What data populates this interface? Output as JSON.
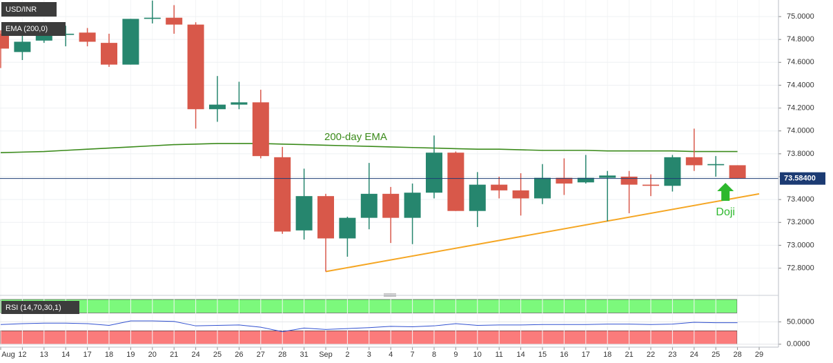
{
  "chart_data": [
    {
      "type": "candlestick",
      "title": "USD/INR",
      "indicator": "EMA (200,0)",
      "categories": [
        "Aug",
        "12",
        "13",
        "14",
        "17",
        "18",
        "19",
        "20",
        "21",
        "24",
        "25",
        "26",
        "27",
        "28",
        "31",
        "Sep",
        "2",
        "3",
        "4",
        "7",
        "8",
        "9",
        "10",
        "11",
        "14",
        "15",
        "16",
        "17",
        "18",
        "21",
        "22",
        "23",
        "24",
        "25",
        "28",
        "29"
      ],
      "open": [
        74.85,
        74.69,
        74.79,
        74.84,
        74.86,
        74.77,
        74.58,
        74.98,
        74.99,
        74.93,
        74.19,
        74.23,
        74.25,
        73.77,
        73.13,
        73.43,
        73.06,
        73.24,
        73.45,
        73.24,
        73.46,
        73.81,
        73.3,
        73.53,
        73.48,
        73.41,
        73.59,
        73.55,
        73.59,
        73.6,
        73.53,
        73.52,
        73.77,
        73.7,
        73.7,
        null
      ],
      "high": [
        74.88,
        74.86,
        74.88,
        74.92,
        74.9,
        74.85,
        74.98,
        75.14,
        75.1,
        74.95,
        74.48,
        74.43,
        74.36,
        73.86,
        73.67,
        73.45,
        73.25,
        73.72,
        73.51,
        73.54,
        73.96,
        73.82,
        73.64,
        73.6,
        73.63,
        73.71,
        73.76,
        73.79,
        73.65,
        73.65,
        73.62,
        73.79,
        74.02,
        73.78,
        73.7,
        null
      ],
      "low": [
        74.55,
        74.62,
        74.77,
        74.74,
        74.74,
        74.56,
        74.58,
        74.94,
        74.85,
        74.02,
        74.08,
        74.19,
        73.76,
        73.1,
        73.05,
        72.77,
        72.9,
        73.14,
        73.02,
        73.01,
        73.41,
        73.3,
        73.16,
        73.41,
        73.26,
        73.36,
        73.44,
        73.54,
        73.21,
        73.28,
        73.43,
        73.47,
        73.65,
        73.6,
        73.584,
        null
      ],
      "close": [
        74.72,
        74.78,
        74.84,
        74.85,
        74.78,
        74.58,
        74.98,
        74.99,
        74.93,
        74.19,
        74.23,
        74.25,
        73.78,
        73.12,
        73.43,
        73.06,
        73.24,
        73.45,
        73.24,
        73.46,
        73.81,
        73.3,
        73.53,
        73.48,
        73.41,
        73.59,
        73.54,
        73.59,
        73.61,
        73.53,
        73.52,
        73.77,
        73.7,
        73.71,
        73.584,
        null
      ],
      "up_color": "#26866e",
      "down_color": "#d8584a",
      "ylim": [
        72.58,
        75.145
      ],
      "yticks": [
        {
          "value": 72.8,
          "label": "72.8000"
        },
        {
          "value": 73.0,
          "label": "73.0000"
        },
        {
          "value": 73.2,
          "label": "73.2000"
        },
        {
          "value": 73.4,
          "label": "73.4000"
        },
        {
          "value": 73.6,
          "label": "73.6000"
        },
        {
          "value": 73.8,
          "label": "73.8000"
        },
        {
          "value": 74.0,
          "label": "74.0000"
        },
        {
          "value": 74.2,
          "label": "74.2000"
        },
        {
          "value": 74.4,
          "label": "74.4000"
        },
        {
          "value": 74.6,
          "label": "74.6000"
        },
        {
          "value": 74.8,
          "label": "74.8000"
        },
        {
          "value": 75.0,
          "label": "75.0000"
        }
      ],
      "grid": true,
      "ema": {
        "name": "200-day EMA",
        "color": "#3a8a1a",
        "values": [
          73.81,
          73.815,
          73.82,
          73.83,
          73.84,
          73.85,
          73.86,
          73.87,
          73.88,
          73.885,
          73.89,
          73.89,
          73.89,
          73.885,
          73.88,
          73.875,
          73.87,
          73.865,
          73.86,
          73.855,
          73.85,
          73.845,
          73.84,
          73.84,
          73.835,
          73.83,
          73.83,
          73.83,
          73.825,
          73.825,
          73.825,
          73.825,
          73.82,
          73.82,
          73.82,
          null
        ]
      },
      "last_price": {
        "value": 73.584,
        "label": "73.58400",
        "color": "#1c3b73"
      },
      "trendline": {
        "x": [
          15,
          35
        ],
        "y": [
          72.77,
          73.45
        ],
        "color": "#f5a623"
      },
      "annotations": [
        {
          "text": "Doji",
          "x": 33,
          "color": "#2db82d"
        }
      ]
    },
    {
      "type": "line",
      "title": "RSI (14,70,30,1)",
      "color": "#3050d0",
      "values": [
        44,
        46,
        47,
        47,
        46,
        42,
        52,
        52,
        51,
        41,
        42,
        43,
        38,
        28,
        36,
        33,
        35,
        37,
        40,
        39,
        41,
        46,
        42,
        43,
        43,
        44,
        44,
        44,
        45,
        45,
        44,
        45,
        49,
        48,
        48,
        null
      ],
      "ylim": [
        -5,
        103
      ],
      "yticks": [
        {
          "value": 0,
          "label": "0.0000"
        },
        {
          "value": 50,
          "label": "50.0000"
        }
      ],
      "bands": [
        {
          "range": [
            70,
            100
          ],
          "color": "#7cf97c"
        },
        {
          "range": [
            0,
            30
          ],
          "color": "#fb7b7b"
        }
      ]
    }
  ]
}
